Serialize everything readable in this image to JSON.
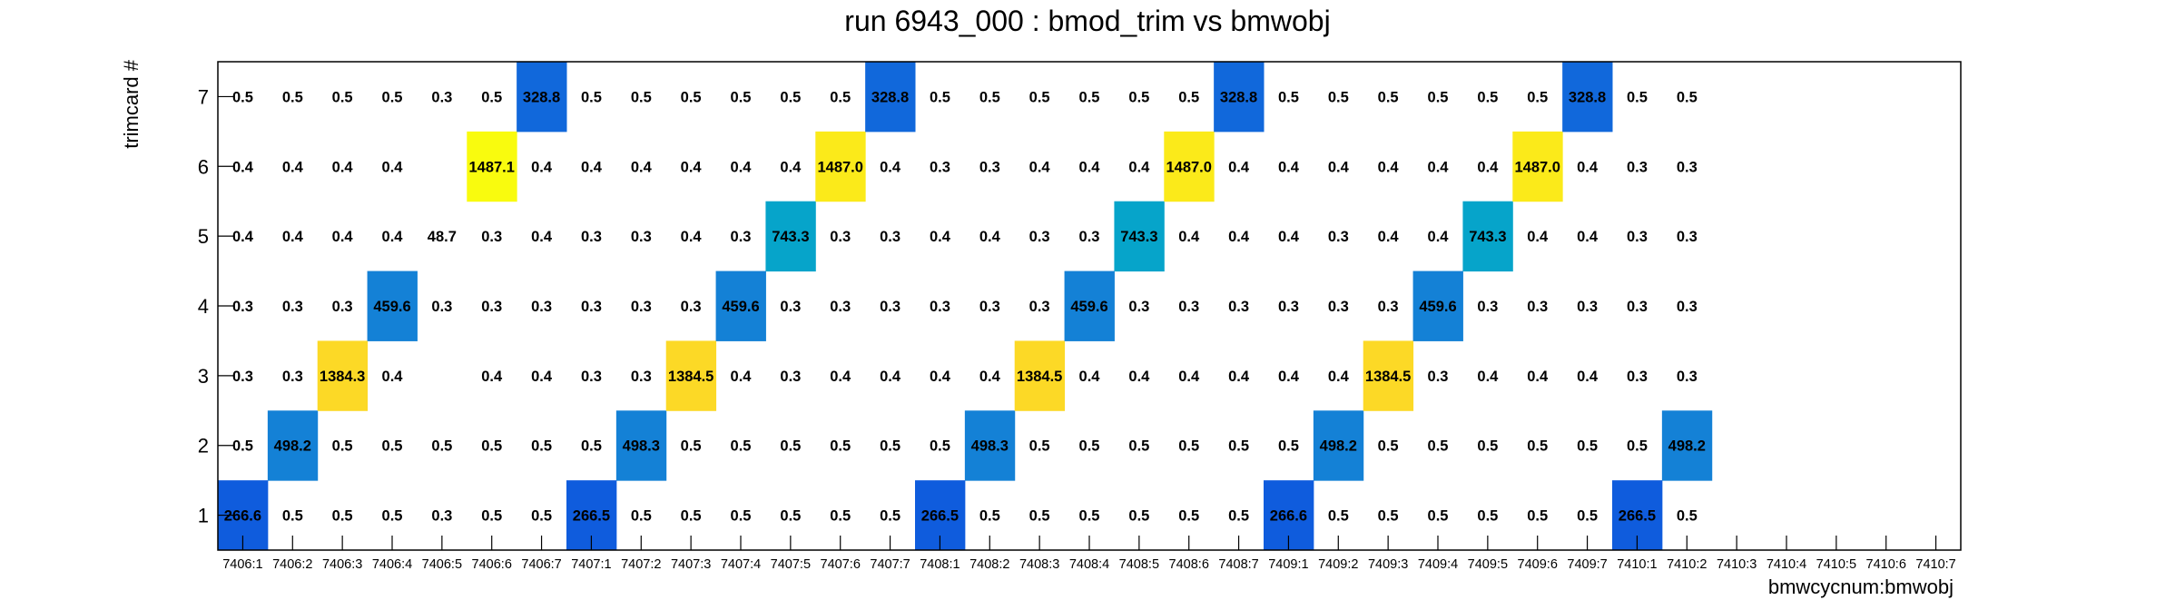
{
  "chart_data": {
    "type": "heatmap",
    "title": "run 6943_000 : bmod_trim vs bmwobj",
    "xlabel": "bmwcycnum:bmwobj",
    "ylabel": "trimcard #",
    "x_categories": [
      "7406:1",
      "7406:2",
      "7406:3",
      "7406:4",
      "7406:5",
      "7406:6",
      "7406:7",
      "7407:1",
      "7407:2",
      "7407:3",
      "7407:4",
      "7407:5",
      "7407:6",
      "7407:7",
      "7408:1",
      "7408:2",
      "7408:3",
      "7408:4",
      "7408:5",
      "7408:6",
      "7408:7",
      "7409:1",
      "7409:2",
      "7409:3",
      "7409:4",
      "7409:5",
      "7409:6",
      "7409:7",
      "7410:1",
      "7410:2",
      "7410:3",
      "7410:4",
      "7410:5",
      "7410:6",
      "7410:7"
    ],
    "y_categories": [
      "1",
      "2",
      "3",
      "4",
      "5",
      "6",
      "7"
    ],
    "rows": [
      {
        "y": "1",
        "values": [
          "266.6",
          "0.5",
          "0.5",
          "0.5",
          "0.3",
          "0.5",
          "0.5",
          "266.5",
          "0.5",
          "0.5",
          "0.5",
          "0.5",
          "0.5",
          "0.5",
          "266.5",
          "0.5",
          "0.5",
          "0.5",
          "0.5",
          "0.5",
          "0.5",
          "266.6",
          "0.5",
          "0.5",
          "0.5",
          "0.5",
          "0.5",
          "0.5",
          "266.5",
          "0.5",
          null,
          null,
          null,
          null,
          null
        ]
      },
      {
        "y": "2",
        "values": [
          "0.5",
          "498.2",
          "0.5",
          "0.5",
          "0.5",
          "0.5",
          "0.5",
          "0.5",
          "498.3",
          "0.5",
          "0.5",
          "0.5",
          "0.5",
          "0.5",
          "0.5",
          "498.3",
          "0.5",
          "0.5",
          "0.5",
          "0.5",
          "0.5",
          "0.5",
          "498.2",
          "0.5",
          "0.5",
          "0.5",
          "0.5",
          "0.5",
          "0.5",
          "498.2",
          null,
          null,
          null,
          null,
          null
        ]
      },
      {
        "y": "3",
        "values": [
          "0.3",
          "0.3",
          "1384.3",
          "0.4",
          null,
          "0.4",
          "0.4",
          "0.3",
          "0.3",
          "1384.5",
          "0.4",
          "0.3",
          "0.4",
          "0.4",
          "0.4",
          "0.4",
          "1384.5",
          "0.4",
          "0.4",
          "0.4",
          "0.4",
          "0.4",
          "0.4",
          "1384.5",
          "0.3",
          "0.4",
          "0.4",
          "0.4",
          "0.3",
          "0.3",
          null,
          null,
          null,
          null,
          null
        ]
      },
      {
        "y": "4",
        "values": [
          "0.3",
          "0.3",
          "0.3",
          "459.6",
          "0.3",
          "0.3",
          "0.3",
          "0.3",
          "0.3",
          "0.3",
          "459.6",
          "0.3",
          "0.3",
          "0.3",
          "0.3",
          "0.3",
          "0.3",
          "459.6",
          "0.3",
          "0.3",
          "0.3",
          "0.3",
          "0.3",
          "0.3",
          "459.6",
          "0.3",
          "0.3",
          "0.3",
          "0.3",
          "0.3",
          null,
          null,
          null,
          null,
          null
        ]
      },
      {
        "y": "5",
        "values": [
          "0.4",
          "0.4",
          "0.4",
          "0.4",
          "48.7",
          "0.3",
          "0.4",
          "0.3",
          "0.3",
          "0.4",
          "0.3",
          "743.3",
          "0.3",
          "0.3",
          "0.4",
          "0.4",
          "0.3",
          "0.3",
          "743.3",
          "0.4",
          "0.4",
          "0.4",
          "0.3",
          "0.4",
          "0.4",
          "743.3",
          "0.4",
          "0.4",
          "0.3",
          "0.3",
          null,
          null,
          null,
          null,
          null
        ]
      },
      {
        "y": "6",
        "values": [
          "0.4",
          "0.4",
          "0.4",
          "0.4",
          null,
          "1487.1",
          "0.4",
          "0.4",
          "0.4",
          "0.4",
          "0.4",
          "0.4",
          "1487.0",
          "0.4",
          "0.3",
          "0.3",
          "0.4",
          "0.4",
          "0.4",
          "1487.0",
          "0.4",
          "0.4",
          "0.4",
          "0.4",
          "0.4",
          "0.4",
          "1487.0",
          "0.4",
          "0.3",
          "0.3",
          null,
          null,
          null,
          null,
          null
        ]
      },
      {
        "y": "7",
        "values": [
          "0.5",
          "0.5",
          "0.5",
          "0.5",
          "0.3",
          "0.5",
          "328.8",
          "0.5",
          "0.5",
          "0.5",
          "0.5",
          "0.5",
          "0.5",
          "328.8",
          "0.5",
          "0.5",
          "0.5",
          "0.5",
          "0.5",
          "0.5",
          "328.8",
          "0.5",
          "0.5",
          "0.5",
          "0.5",
          "0.5",
          "0.5",
          "328.8",
          "0.5",
          "0.5",
          null,
          null,
          null,
          null,
          null
        ]
      }
    ],
    "z_min": 0,
    "legend": "none",
    "grid": false
  }
}
